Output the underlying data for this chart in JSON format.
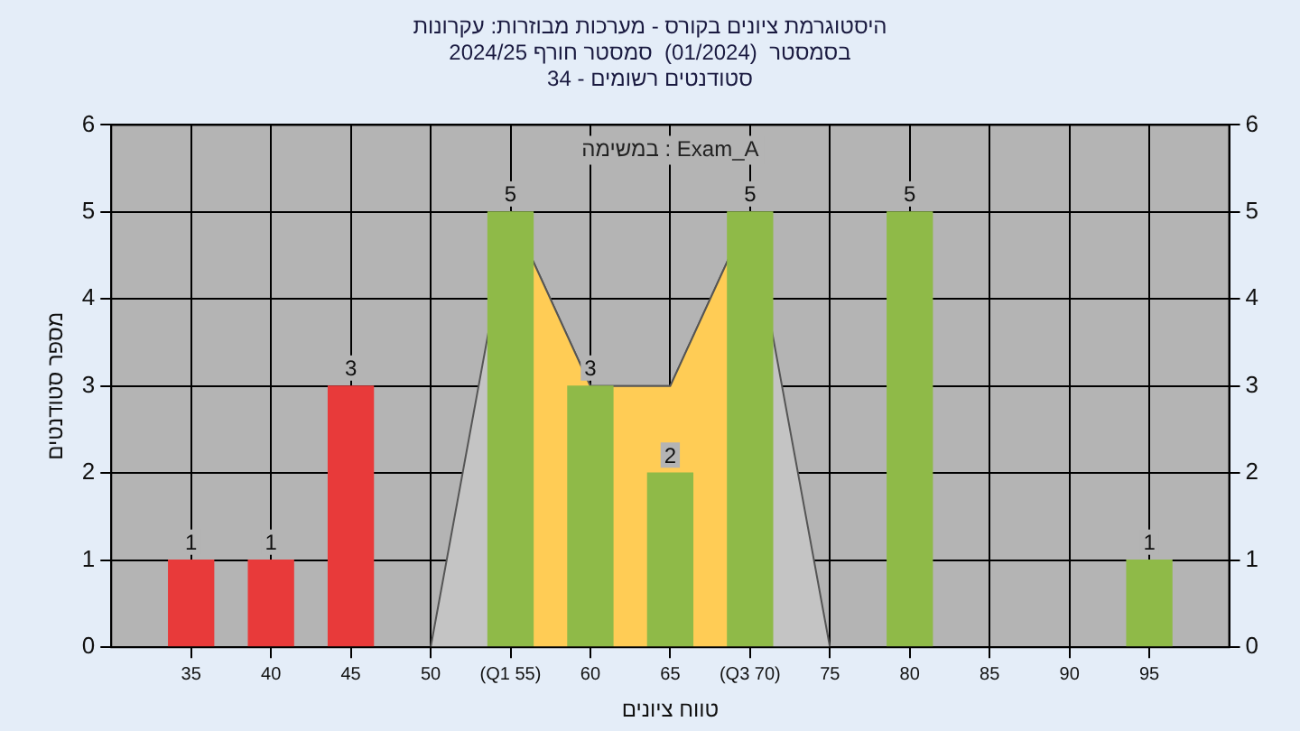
{
  "chart_data": {
    "type": "bar",
    "title": "היסטוגרמת ציונים בקורס - מערכות מבוזרות: עקרונות",
    "subtitle": "בסמסטר  (01/2024)  סמסטר חורף 2024/25\nסטודנטים רשומים - 34",
    "xlabel": "טווח ציונים",
    "ylabel": "מספר סטודנטים",
    "annotations": [
      "במשימה : Exam_A"
    ],
    "xlim": [
      30,
      100
    ],
    "xticks": [
      35,
      40,
      45,
      50,
      {
        "value": 55,
        "label": "(Q1 55)"
      },
      60,
      65,
      {
        "value": 70,
        "label": "(Q3 70)"
      },
      75,
      80,
      85,
      90,
      95
    ],
    "ylim": [
      0,
      6
    ],
    "yticks": [
      0,
      1,
      2,
      3,
      4,
      5,
      6
    ],
    "y2lim": [
      0,
      6
    ],
    "y2ticks": [
      0,
      1,
      2,
      3,
      4,
      5,
      6
    ],
    "grid": true,
    "legend": false,
    "series": [
      {
        "type": "area",
        "color": "#c4c4c4",
        "x": [
          50,
          55,
          60,
          65,
          70,
          75
        ],
        "values": [
          0,
          5,
          3,
          3,
          5,
          0
        ]
      },
      {
        "type": "area",
        "color": "#ffcc55",
        "x": [
          55,
          60,
          65,
          70
        ],
        "values": [
          5,
          3,
          3,
          5
        ]
      },
      {
        "x": [
          35,
          40,
          45,
          55,
          60,
          65,
          70,
          80,
          95
        ],
        "values": [
          1,
          1,
          3,
          5,
          3,
          2,
          5,
          5,
          1
        ],
        "value_labels": [
          "1",
          "1",
          "3",
          "5",
          "3",
          "2",
          "5",
          "5",
          "1"
        ],
        "colors": [
          "#e83a3a",
          "#e83a3a",
          "#e83a3a",
          "#8fba48",
          "#8fba48",
          "#8fba48",
          "#8fba48",
          "#8fba48",
          "#8fba48"
        ]
      }
    ]
  }
}
